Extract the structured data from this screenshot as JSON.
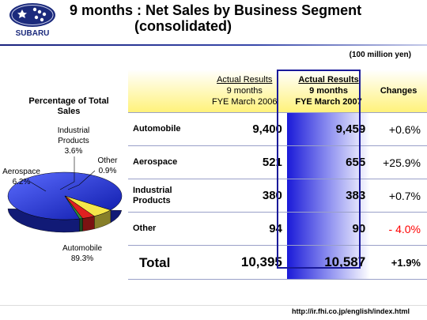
{
  "header": {
    "logo_text": "SUBARU",
    "title_line1": "9 months : Net Sales by Business Segment",
    "title_line2": "(consolidated)"
  },
  "unit": "(100 million yen)",
  "pie": {
    "title_line1": "Percentage of Total",
    "title_line2": "Sales",
    "labels": {
      "automobile": {
        "name": "Automobile",
        "value": "89.3%"
      },
      "aerospace": {
        "name": "Aerospace",
        "value": "6.2%"
      },
      "industrial": {
        "name_line1": "Industrial",
        "name_line2": "Products",
        "value": "3.6%"
      },
      "other": {
        "name": "Other",
        "value": "0.9%"
      }
    },
    "colors": {
      "automobile": "#1f2fd6",
      "aerospace": "#f5e64a",
      "industrial": "#e02020",
      "other": "#2e8b3e"
    }
  },
  "table": {
    "col_2006": {
      "line1": "Actual Results",
      "line2": "9 months",
      "line3": "FYE March 2006"
    },
    "col_2007": {
      "line1": "Actual Results",
      "line2": "9 months",
      "line3": "FYE March 2007"
    },
    "col_change": "Changes",
    "rows": [
      {
        "segment_line1": "Automobile",
        "segment_line2": "",
        "v2006": "9,400",
        "v2007": "9,459",
        "change": "+0.6%"
      },
      {
        "segment_line1": "Aerospace",
        "segment_line2": "",
        "v2006": "521",
        "v2007": "655",
        "change": "+25.9%"
      },
      {
        "segment_line1": "Industrial",
        "segment_line2": "Products",
        "v2006": "380",
        "v2007": "383",
        "change": "+0.7%"
      },
      {
        "segment_line1": "Other",
        "segment_line2": "",
        "v2006": "94",
        "v2007": "90",
        "change": "- 4.0%"
      }
    ],
    "total": {
      "label": "Total",
      "v2006": "10,395",
      "v2007": "10,587",
      "change": "+1.9%"
    }
  },
  "footer_url": "http://ir.fhi.co.jp/english/index.html",
  "chart_data": [
    {
      "type": "pie",
      "title": "Percentage of Total Sales",
      "categories": [
        "Automobile",
        "Aerospace",
        "Industrial Products",
        "Other"
      ],
      "values": [
        89.3,
        6.2,
        3.6,
        0.9
      ]
    },
    {
      "type": "table",
      "columns": [
        "Actual Results 9 months FYE March 2006",
        "Actual Results 9 months FYE March 2007",
        "Changes"
      ],
      "rows": [
        "Automobile",
        "Aerospace",
        "Industrial Products",
        "Other",
        "Total"
      ],
      "values": [
        [
          9400,
          9459,
          "+0.6%"
        ],
        [
          521,
          655,
          "+25.9%"
        ],
        [
          380,
          383,
          "+0.7%"
        ],
        [
          94,
          90,
          "-4.0%"
        ],
        [
          10395,
          10587,
          "+1.9%"
        ]
      ]
    }
  ]
}
